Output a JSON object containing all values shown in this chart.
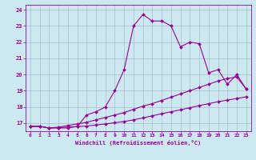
{
  "xlabel": "Windchill (Refroidissement éolien,°C)",
  "ylabel": "",
  "background_color": "#cce8f0",
  "plot_bg_color": "#cce8f0",
  "line_color": "#990099",
  "grid_color": "#aabbcc",
  "xlim": [
    -0.5,
    23.5
  ],
  "ylim": [
    16.5,
    24.3
  ],
  "xticks": [
    0,
    1,
    2,
    3,
    4,
    5,
    6,
    7,
    8,
    9,
    10,
    11,
    12,
    13,
    14,
    15,
    16,
    17,
    18,
    19,
    20,
    21,
    22,
    23
  ],
  "yticks": [
    17,
    18,
    19,
    20,
    21,
    22,
    23,
    24
  ],
  "curve1_x": [
    0,
    1,
    2,
    3,
    4,
    5,
    6,
    7,
    8,
    9,
    10,
    11,
    12,
    13,
    14,
    15,
    16,
    17,
    18,
    19,
    20,
    21,
    22,
    23
  ],
  "curve1_y": [
    16.8,
    16.8,
    16.7,
    16.7,
    16.7,
    16.8,
    17.5,
    17.7,
    18.0,
    19.0,
    20.3,
    23.0,
    23.7,
    23.3,
    23.3,
    23.0,
    21.7,
    22.0,
    21.9,
    20.1,
    20.3,
    19.4,
    20.0,
    19.1
  ],
  "curve2_x": [
    0,
    1,
    2,
    3,
    4,
    5,
    6,
    7,
    8,
    9,
    10,
    11,
    12,
    13,
    14,
    15,
    16,
    17,
    18,
    19,
    20,
    21,
    22,
    23
  ],
  "curve2_y": [
    16.8,
    16.8,
    16.7,
    16.75,
    16.85,
    16.95,
    17.05,
    17.2,
    17.35,
    17.5,
    17.65,
    17.85,
    18.05,
    18.2,
    18.4,
    18.6,
    18.8,
    19.0,
    19.2,
    19.4,
    19.6,
    19.75,
    19.85,
    19.1
  ],
  "curve3_x": [
    0,
    1,
    2,
    3,
    4,
    5,
    6,
    7,
    8,
    9,
    10,
    11,
    12,
    13,
    14,
    15,
    16,
    17,
    18,
    19,
    20,
    21,
    22,
    23
  ],
  "curve3_y": [
    16.8,
    16.8,
    16.7,
    16.72,
    16.75,
    16.78,
    16.82,
    16.88,
    16.95,
    17.02,
    17.1,
    17.2,
    17.32,
    17.45,
    17.58,
    17.7,
    17.82,
    17.95,
    18.08,
    18.2,
    18.32,
    18.42,
    18.52,
    18.62
  ]
}
